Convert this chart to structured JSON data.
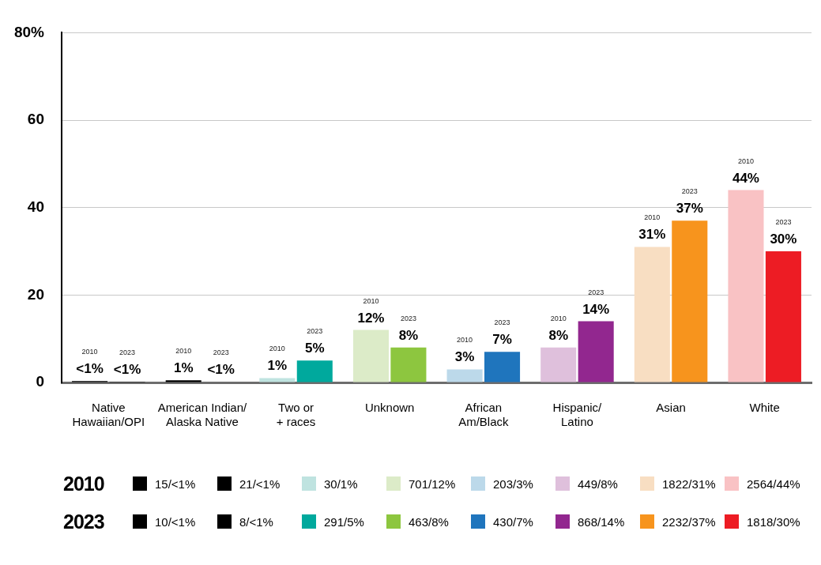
{
  "chart_data": {
    "type": "bar",
    "categories": [
      "Native\nHawaiian/OPI",
      "American Indian/\nAlaska Native",
      "Two or\n+ races",
      "Unknown",
      "African\nAm/Black",
      "Hispanic/\nLatino",
      "Asian",
      "White"
    ],
    "series": [
      {
        "name": "2010",
        "values": [
          0.3,
          0.5,
          1,
          12,
          3,
          8,
          31,
          44
        ],
        "colors": [
          "#000000",
          "#000000",
          "#bfe3e0",
          "#dcebc8",
          "#bcd9ea",
          "#dfc0dc",
          "#f8dec2",
          "#f9c2c4"
        ],
        "value_labels": [
          "<1%",
          "1%",
          "1%",
          "12%",
          "3%",
          "8%",
          "31%",
          "44%"
        ]
      },
      {
        "name": "2023",
        "values": [
          0.2,
          0.1,
          5,
          8,
          7,
          14,
          37,
          30
        ],
        "colors": [
          "#000000",
          "#000000",
          "#00a99d",
          "#8dc63f",
          "#1f75bd",
          "#92278f",
          "#f7941d",
          "#ed1c24"
        ],
        "value_labels": [
          "<1%",
          "<1%",
          "5%",
          "8%",
          "7%",
          "14%",
          "37%",
          "30%"
        ]
      }
    ],
    "ylim": [
      0,
      80
    ],
    "yticks": [
      0,
      20,
      40,
      60,
      {
        "value": 80,
        "label": "80%"
      }
    ],
    "grid": "y",
    "legend": "bottom",
    "annotations": [
      "15/<1%",
      "21/<1%",
      "30/1%",
      "701/12%",
      "203/3%",
      "449/8%",
      "1822/31%",
      "2564/44%",
      "10/<1%",
      "8/<1%",
      "291/5%",
      "463/8%",
      "430/7%",
      "868/14%",
      "2232/37%",
      "1818/30%"
    ]
  }
}
